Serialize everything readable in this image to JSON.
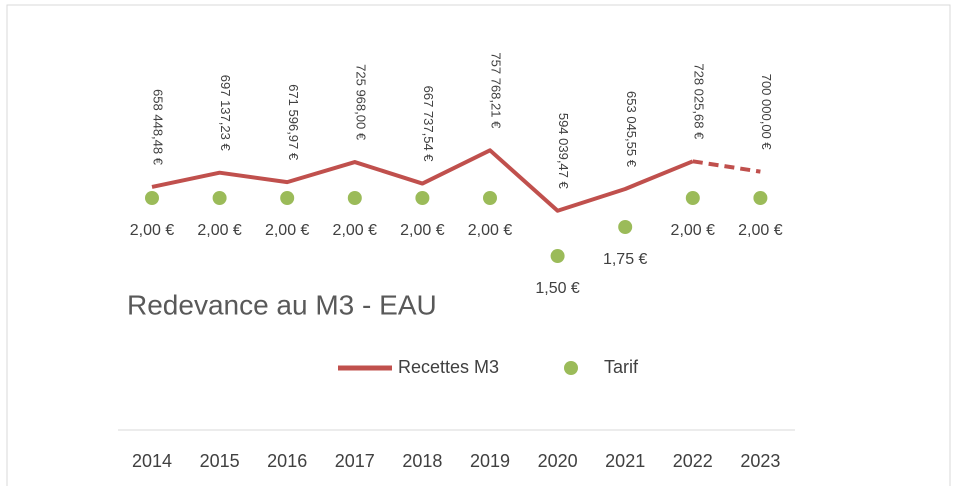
{
  "chart_data": {
    "type": "line",
    "title": "Redevance au M3 - EAU",
    "categories": [
      "2014",
      "2015",
      "2016",
      "2017",
      "2018",
      "2019",
      "2020",
      "2021",
      "2022",
      "2023"
    ],
    "series": [
      {
        "name": "Recettes M3",
        "type": "line",
        "color": "#c0504d",
        "values": [
          658448.48,
          697137.23,
          671596.97,
          725968.0,
          667737.54,
          757768.21,
          594039.47,
          653045.55,
          728025.68,
          700000.0
        ],
        "value_labels": [
          "658 448,48 €",
          "697 137,23 €",
          "671 596,97 €",
          "725 968,00 €",
          "667 737,54 €",
          "757 768,21 €",
          "594 039,47 €",
          "653 045,55 €",
          "728 025,68 €",
          "700 000,00 €"
        ]
      },
      {
        "name": "Tarif",
        "type": "scatter",
        "color": "#9bbb59",
        "axis": "y2",
        "values": [
          2,
          2,
          2,
          2,
          2,
          2,
          1.5,
          1.75,
          2,
          2
        ],
        "value_labels": [
          "2,00 €",
          "2,00 €",
          "2,00 €",
          "2,00 €",
          "2,00 €",
          "2,00 €",
          "1,50 €",
          "1,75 €",
          "2,00 €",
          "2,00 €"
        ]
      }
    ],
    "ylim": [
      0,
      1100000
    ],
    "y2lim": [
      0,
      3.5
    ],
    "legend": "bottom"
  }
}
